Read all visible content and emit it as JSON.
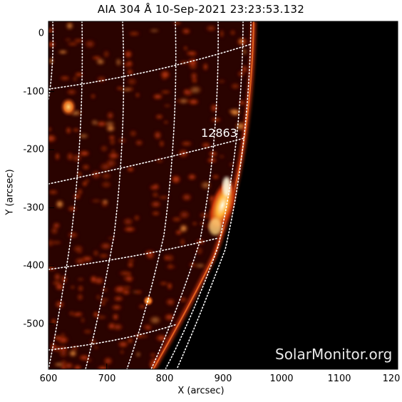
{
  "title": "AIA 304 Å 10-Sep-2021 23:23:53.132",
  "xlabel": "X (arcsec)",
  "ylabel": "Y (arcsec)",
  "x_ticks": [
    "600",
    "700",
    "800",
    "900",
    "1000",
    "1100",
    "120"
  ],
  "y_ticks": [
    "0",
    "-100",
    "-200",
    "-300",
    "-400",
    "-500"
  ],
  "active_region": "12863",
  "watermark": "SolarMonitor.org"
}
